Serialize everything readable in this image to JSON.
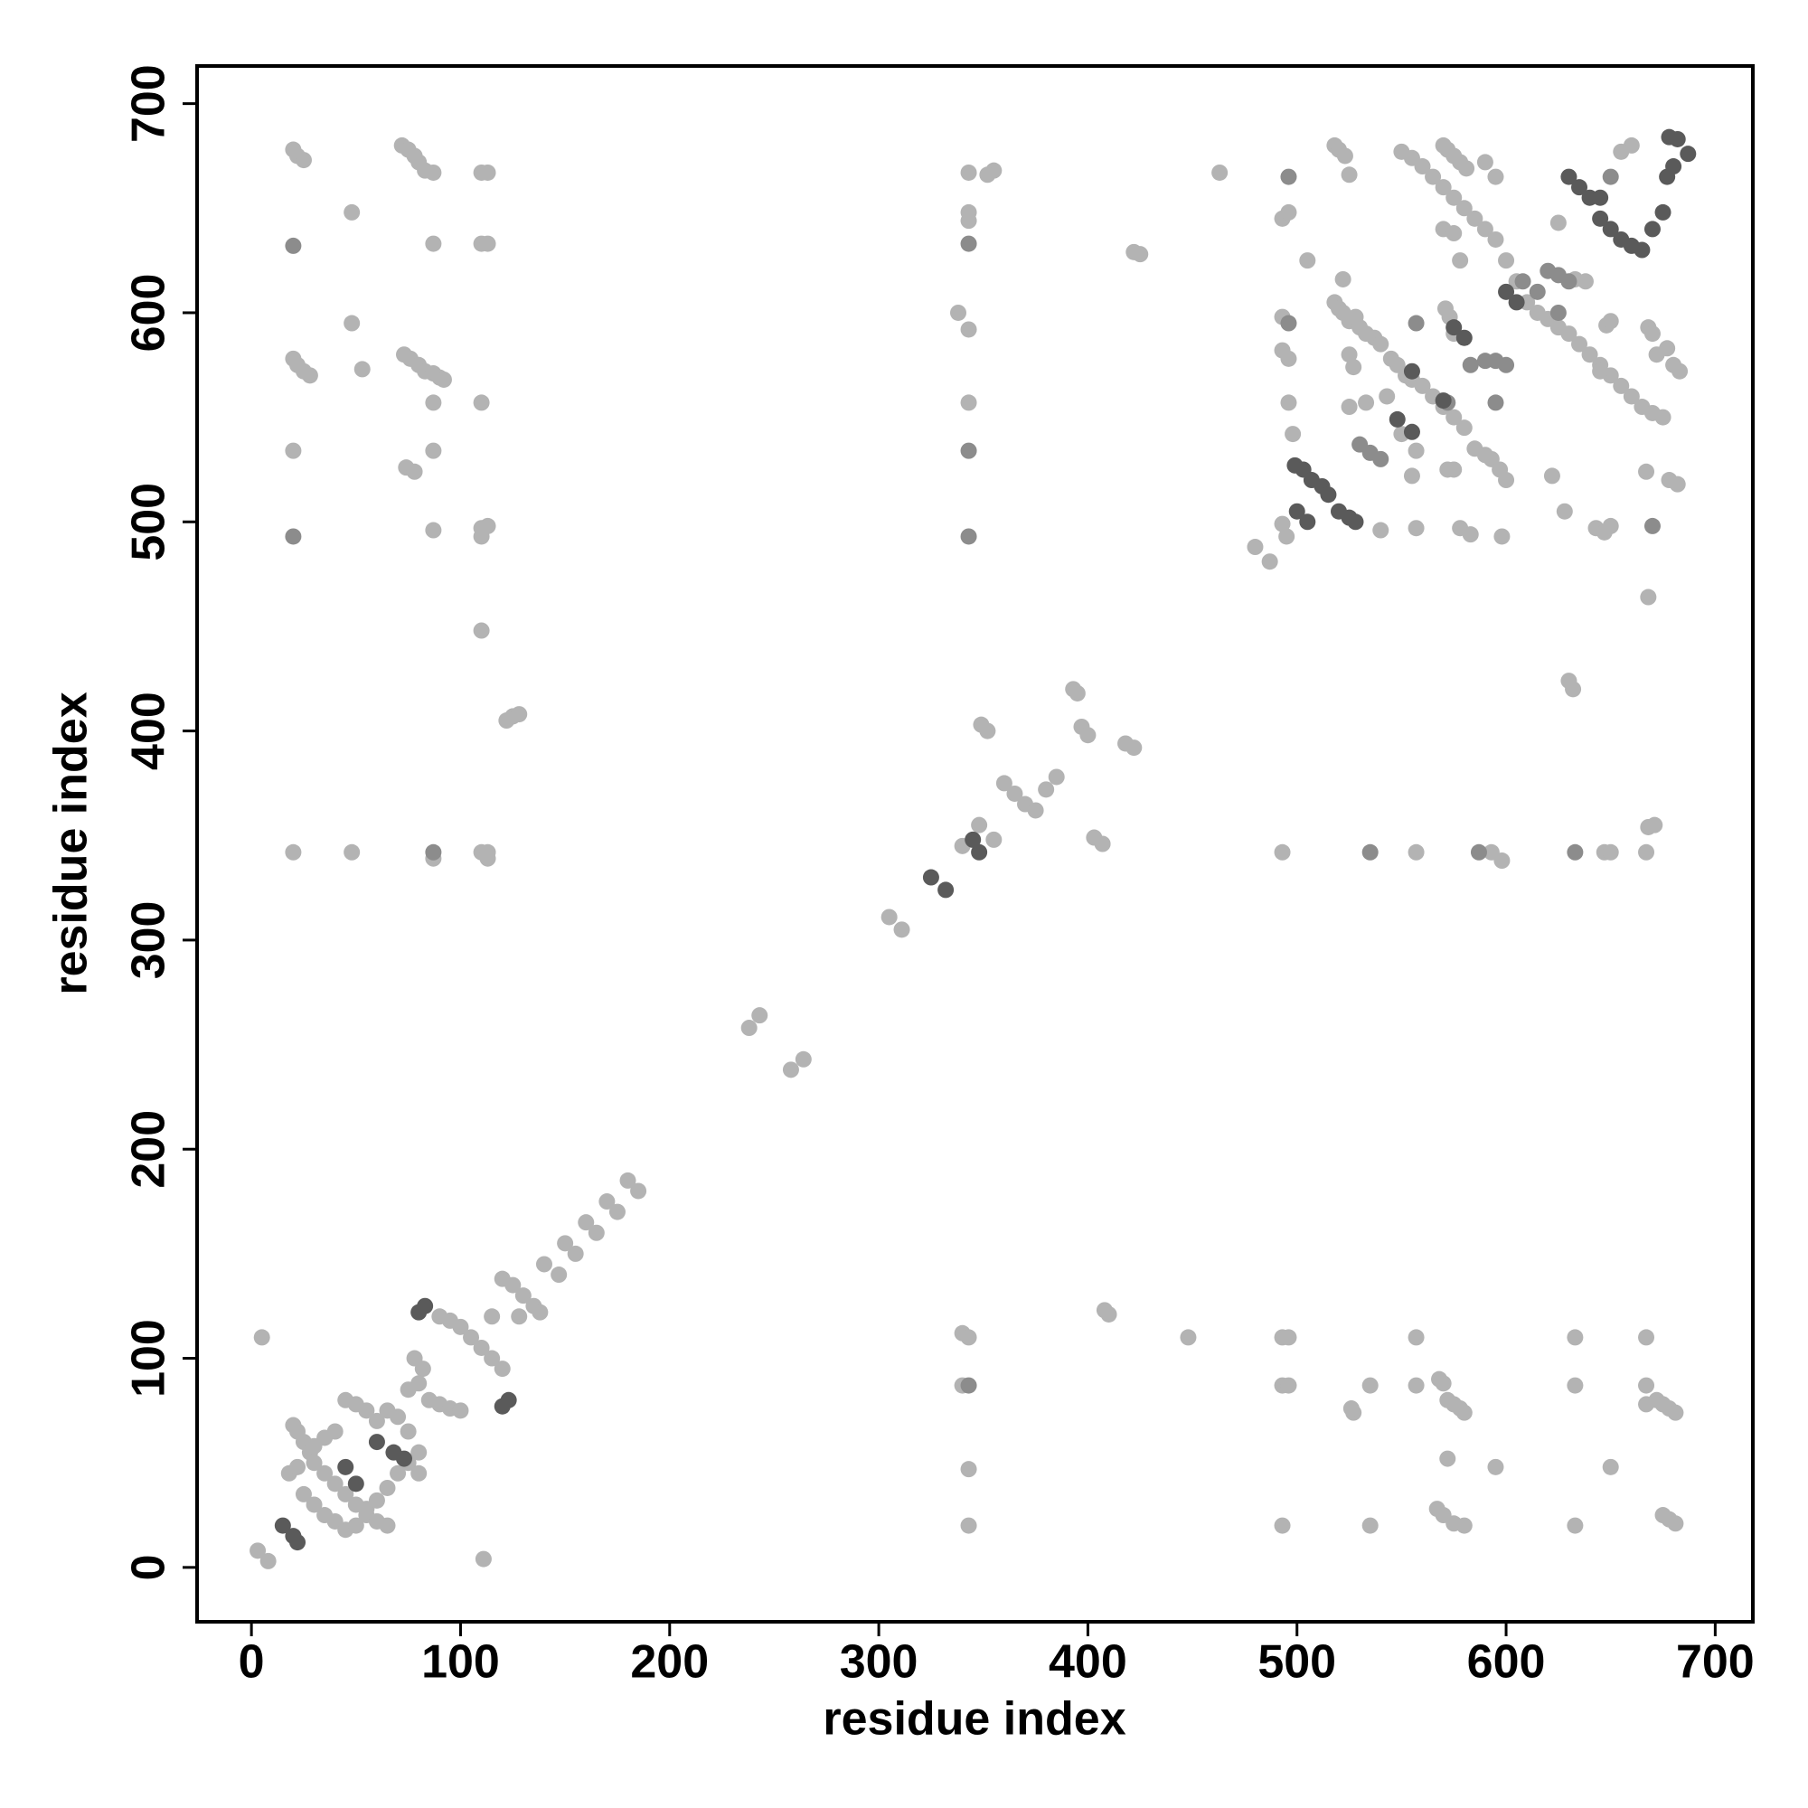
{
  "chart_data": {
    "type": "scatter",
    "x_label": "residue index",
    "y_label": "residue index",
    "xlim": [
      -26,
      718
    ],
    "ylim": [
      -26,
      718
    ],
    "xticks": [
      0,
      100,
      200,
      300,
      400,
      500,
      600,
      700
    ],
    "yticks": [
      0,
      100,
      200,
      300,
      400,
      500,
      600,
      700
    ],
    "series": [
      {
        "color": "#b3b3b3",
        "x": [
          3,
          8,
          5,
          20,
          22,
          25,
          28,
          18,
          22,
          30,
          35,
          40,
          45,
          50,
          55,
          60,
          65,
          25,
          30,
          35,
          40,
          45,
          50,
          55,
          60,
          65,
          70,
          75,
          45,
          50,
          55,
          60,
          40,
          35,
          30,
          65,
          70,
          75,
          80,
          80,
          85,
          90,
          95,
          78,
          82,
          80,
          75,
          90,
          95,
          100,
          105,
          110,
          115,
          120,
          100,
          115,
          120,
          125,
          130,
          135,
          128,
          138,
          140,
          147,
          150,
          155,
          160,
          165,
          170,
          175,
          180,
          185,
          111,
          238,
          243,
          258,
          264,
          305,
          311,
          340,
          348,
          355,
          360,
          365,
          370,
          375,
          380,
          385,
          393,
          395,
          397,
          400,
          403,
          407,
          410,
          408,
          418,
          422,
          349,
          352,
          122,
          125,
          128,
          20,
          22,
          25,
          20,
          22,
          25,
          28,
          20,
          20,
          48,
          48,
          48,
          53,
          72,
          75,
          78,
          80,
          83,
          87,
          74,
          78,
          73,
          76,
          80,
          83,
          87,
          90,
          92,
          87,
          87,
          87,
          87,
          87,
          110,
          113,
          110,
          113,
          110,
          110,
          110,
          113,
          110,
          110,
          113,
          113,
          340,
          343,
          340,
          343,
          343,
          448,
          493,
          496,
          493,
          496,
          493,
          527,
          526,
          535,
          535,
          557,
          557,
          568,
          570,
          572,
          575,
          578,
          580,
          567,
          570,
          575,
          580,
          572,
          595,
          633,
          633,
          633,
          650,
          667,
          667,
          667,
          672,
          675,
          678,
          681,
          675,
          678,
          681,
          343,
          343,
          343,
          355,
          352,
          338,
          343,
          343,
          422,
          425,
          463,
          493,
          557,
          593,
          598,
          647,
          650,
          667,
          668,
          671,
          668,
          480,
          487,
          493,
          495,
          493,
          496,
          493,
          493,
          496,
          496,
          498,
          505,
          518,
          520,
          523,
          525,
          518,
          520,
          522,
          525,
          528,
          530,
          533,
          537,
          540,
          545,
          548,
          552,
          555,
          560,
          565,
          570,
          575,
          580,
          525,
          527,
          522,
          525,
          533,
          543,
          550,
          555,
          557,
          557,
          540,
          550,
          555,
          560,
          565,
          570,
          575,
          580,
          585,
          590,
          595,
          600,
          605,
          610,
          615,
          620,
          625,
          630,
          635,
          640,
          645,
          650,
          655,
          660,
          665,
          670,
          675,
          570,
          572,
          575,
          578,
          581,
          570,
          575,
          578,
          590,
          595,
          571,
          573,
          575,
          572,
          575,
          585,
          590,
          593,
          597,
          600,
          578,
          583,
          598,
          622,
          628,
          632,
          630,
          633,
          638,
          625,
          648,
          650,
          645,
          668,
          670,
          672,
          677,
          680,
          683,
          678,
          682,
          667,
          643,
          647,
          650,
          660,
          655
        ],
        "values": [
          8,
          3,
          110,
          68,
          65,
          60,
          55,
          45,
          48,
          50,
          45,
          40,
          35,
          30,
          25,
          22,
          20,
          35,
          30,
          25,
          22,
          18,
          20,
          28,
          32,
          38,
          45,
          50,
          80,
          78,
          75,
          70,
          65,
          62,
          58,
          75,
          72,
          65,
          55,
          45,
          80,
          78,
          76,
          100,
          95,
          88,
          85,
          120,
          118,
          115,
          110,
          105,
          100,
          95,
          75,
          120,
          138,
          135,
          130,
          125,
          120,
          122,
          145,
          140,
          155,
          150,
          165,
          160,
          175,
          170,
          185,
          180,
          4,
          258,
          264,
          238,
          243,
          311,
          305,
          345,
          355,
          348,
          375,
          370,
          365,
          362,
          372,
          378,
          420,
          418,
          402,
          398,
          349,
          346,
          121,
          123,
          394,
          392,
          403,
          400,
          405,
          407,
          408,
          678,
          675,
          673,
          578,
          575,
          572,
          570,
          534,
          342,
          648,
          595,
          342,
          573,
          680,
          678,
          675,
          672,
          668,
          667,
          526,
          524,
          580,
          578,
          575,
          572,
          571,
          569,
          568,
          557,
          534,
          633,
          496,
          339,
          667,
          667,
          633,
          633,
          557,
          497,
          493,
          498,
          448,
          342,
          339,
          342,
          112,
          110,
          87,
          47,
          20,
          110,
          110,
          110,
          87,
          87,
          20,
          74,
          76,
          87,
          20,
          110,
          87,
          90,
          88,
          80,
          78,
          76,
          74,
          28,
          25,
          21,
          20,
          52,
          48,
          110,
          87,
          20,
          48,
          110,
          87,
          78,
          80,
          78,
          76,
          74,
          25,
          23,
          21,
          667,
          648,
          644,
          668,
          666,
          600,
          592,
          557,
          629,
          628,
          667,
          342,
          342,
          342,
          338,
          342,
          342,
          342,
          354,
          355,
          464,
          488,
          481,
          499,
          493,
          582,
          578,
          598,
          645,
          648,
          557,
          542,
          625,
          680,
          678,
          675,
          666,
          605,
          602,
          600,
          596,
          598,
          593,
          590,
          588,
          585,
          578,
          575,
          570,
          568,
          565,
          560,
          555,
          550,
          545,
          580,
          574,
          616,
          555,
          557,
          560,
          542,
          522,
          534,
          497,
          496,
          677,
          674,
          670,
          665,
          660,
          655,
          650,
          645,
          640,
          635,
          625,
          615,
          605,
          600,
          597,
          593,
          590,
          585,
          580,
          575,
          570,
          565,
          560,
          555,
          552,
          550,
          680,
          678,
          675,
          672,
          669,
          640,
          638,
          625,
          672,
          665,
          602,
          598,
          590,
          525,
          525,
          535,
          532,
          530,
          525,
          520,
          497,
          494,
          493,
          522,
          505,
          420,
          424,
          616,
          615,
          643,
          594,
          596,
          572,
          593,
          590,
          580,
          583,
          575,
          572,
          520,
          518,
          524,
          497,
          495,
          498,
          680,
          677
        ]
      },
      {
        "color": "#8c8c8c",
        "x": [
          20,
          20,
          343,
          343,
          343,
          343,
          496,
          496,
          535,
          633,
          557,
          595,
          587,
          583,
          590,
          595,
          600,
          608,
          615,
          620,
          625,
          630,
          650,
          670,
          625,
          572,
          530,
          535,
          540,
          87
        ],
        "values": [
          632,
          493,
          633,
          534,
          493,
          87,
          665,
          595,
          342,
          342,
          595,
          557,
          342,
          575,
          577,
          577,
          575,
          615,
          610,
          620,
          618,
          615,
          665,
          498,
          600,
          557,
          537,
          533,
          530,
          342
        ]
      },
      {
        "color": "#5a5a5a",
        "x": [
          15,
          20,
          22,
          60,
          68,
          73,
          45,
          50,
          80,
          83,
          120,
          123,
          325,
          332,
          345,
          348,
          499,
          503,
          507,
          512,
          515,
          520,
          525,
          528,
          500,
          505,
          548,
          555,
          555,
          570,
          575,
          580,
          600,
          605,
          630,
          635,
          640,
          645,
          650,
          655,
          660,
          665,
          670,
          675,
          677,
          680,
          678,
          682,
          687,
          645
        ],
        "values": [
          20,
          15,
          12,
          60,
          55,
          52,
          48,
          40,
          122,
          125,
          77,
          80,
          330,
          324,
          348,
          342,
          527,
          525,
          520,
          517,
          513,
          505,
          502,
          500,
          505,
          500,
          549,
          543,
          572,
          558,
          593,
          588,
          610,
          605,
          665,
          660,
          655,
          645,
          640,
          635,
          632,
          630,
          640,
          648,
          665,
          670,
          684,
          683,
          676,
          655
        ]
      }
    ]
  }
}
